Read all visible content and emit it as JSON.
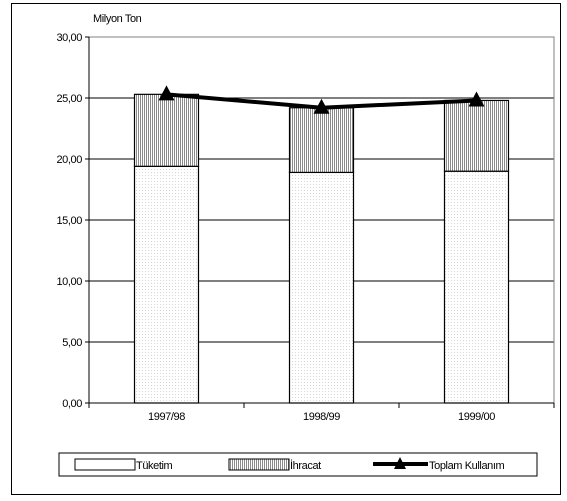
{
  "chart_data": {
    "type": "bar",
    "stacked": true,
    "title": "",
    "ylabel": "Milyon Ton",
    "xlabel": "",
    "ylim": [
      0,
      30
    ],
    "yticks": [
      "0,00",
      "5,00",
      "10,00",
      "15,00",
      "20,00",
      "25,00",
      "30,00"
    ],
    "ytick_values": [
      0,
      5,
      10,
      15,
      20,
      25,
      30
    ],
    "grid": true,
    "legend_position": "bottom",
    "categories": [
      "1997/98",
      "1998/99",
      "1999/00"
    ],
    "series": [
      {
        "name": "Tüketim",
        "type": "bar",
        "values": [
          19.4,
          18.9,
          19.0
        ]
      },
      {
        "name": "İhracat",
        "type": "bar",
        "values": [
          5.9,
          5.3,
          5.8
        ]
      },
      {
        "name": "Toplam Kullanım",
        "type": "line",
        "values": [
          25.3,
          24.2,
          24.8
        ]
      }
    ],
    "colors": {
      "frame": "#000000",
      "plot_border": "#808080",
      "grid": "#000000",
      "bar_fill": "#ffffff",
      "bar_stroke": "#000000"
    }
  }
}
